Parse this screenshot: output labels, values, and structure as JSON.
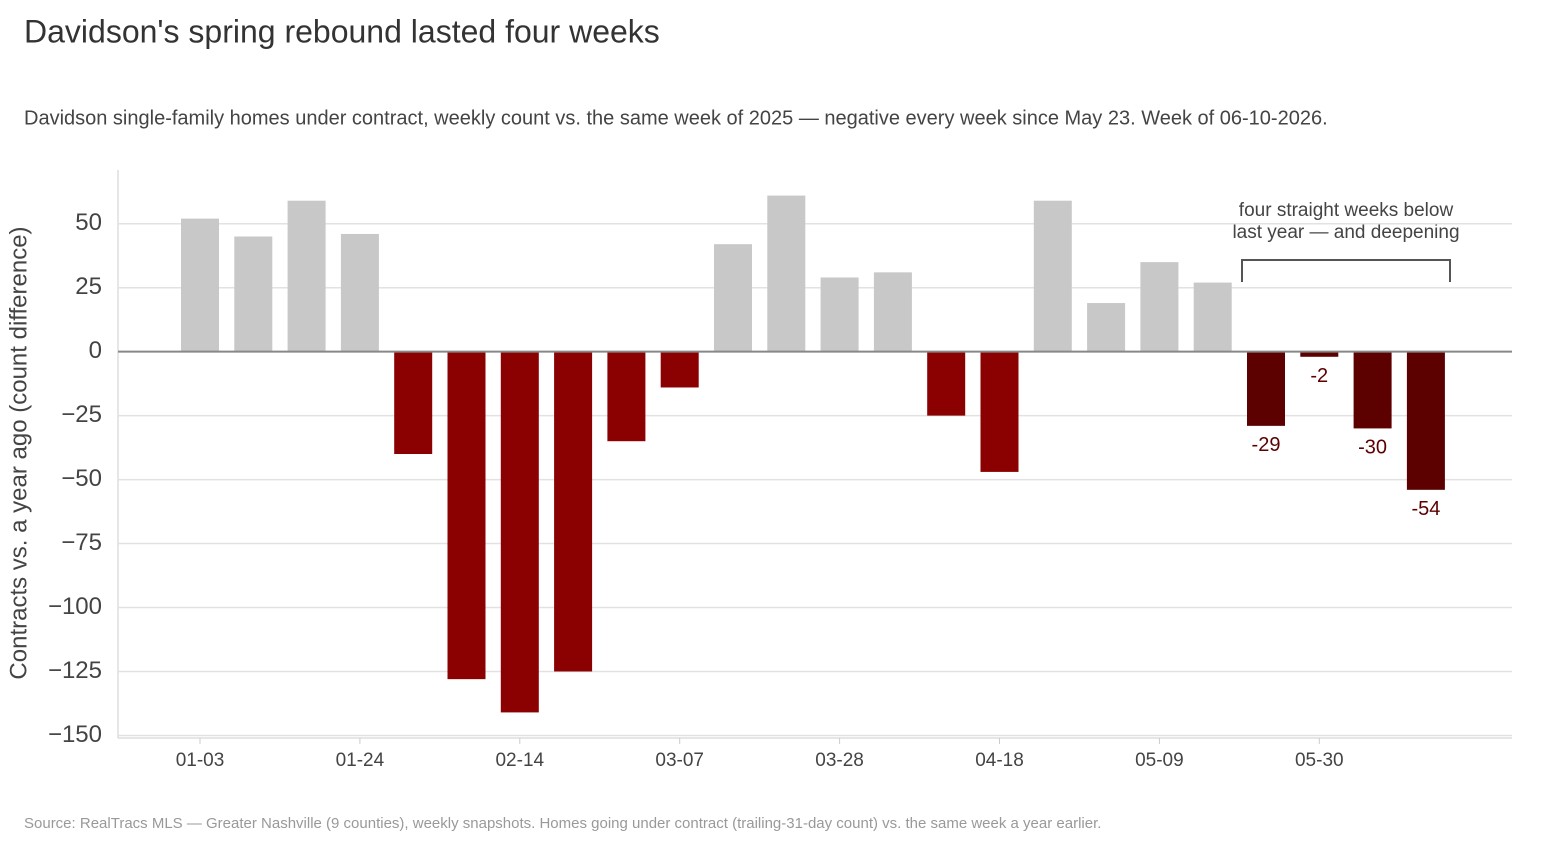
{
  "chart_data": {
    "type": "bar",
    "title": "Davidson's spring rebound lasted four weeks",
    "subtitle": "Davidson single-family homes under contract, weekly count vs. the same week of 2025 — negative every week since May 23. Week of 06-10-2026.",
    "y_label": "Contracts vs. a year ago (count difference)",
    "source": "Source: RealTracs MLS — Greater Nashville (9 counties), weekly snapshots. Homes going under contract (trailing-31-day count) vs. the same week a year earlier.",
    "annotation": [
      "four straight weeks below",
      "last year — and deepening"
    ],
    "categories": [
      "01-03",
      null,
      null,
      "01-24",
      null,
      null,
      "02-14",
      null,
      null,
      "03-07",
      null,
      null,
      "03-28",
      null,
      null,
      "04-18",
      null,
      null,
      "05-09",
      null,
      null,
      "05-30",
      null,
      null
    ],
    "values": [
      52,
      45,
      59,
      46,
      -40,
      -128,
      -141,
      -125,
      -35,
      -14,
      42,
      61,
      29,
      31,
      -25,
      -47,
      59,
      19,
      35,
      27,
      -29,
      -2,
      -30,
      -54
    ],
    "value_labels": [
      null,
      null,
      null,
      null,
      null,
      null,
      null,
      null,
      null,
      null,
      null,
      null,
      null,
      null,
      null,
      null,
      null,
      null,
      null,
      null,
      "-29",
      "-2",
      "-30",
      "-54"
    ],
    "colors": [
      "#c8c8c8",
      "#c8c8c8",
      "#c8c8c8",
      "#c8c8c8",
      "#8b0000",
      "#8b0000",
      "#8b0000",
      "#8b0000",
      "#8b0000",
      "#8b0000",
      "#c8c8c8",
      "#c8c8c8",
      "#c8c8c8",
      "#c8c8c8",
      "#8b0000",
      "#8b0000",
      "#c8c8c8",
      "#c8c8c8",
      "#c8c8c8",
      "#c8c8c8",
      "#5c0000",
      "#5c0000",
      "#5c0000",
      "#5c0000"
    ],
    "label_color": "#5c0000",
    "ylim": [
      -151,
      71
    ],
    "yticks": [
      {
        "value": -150,
        "label": "−150"
      },
      {
        "value": -125,
        "label": "−125"
      },
      {
        "value": -100,
        "label": "−100"
      },
      {
        "value": -75,
        "label": "−75"
      },
      {
        "value": -50,
        "label": "−50"
      },
      {
        "value": -25,
        "label": "−25"
      },
      0,
      25,
      50
    ],
    "grid": true
  }
}
